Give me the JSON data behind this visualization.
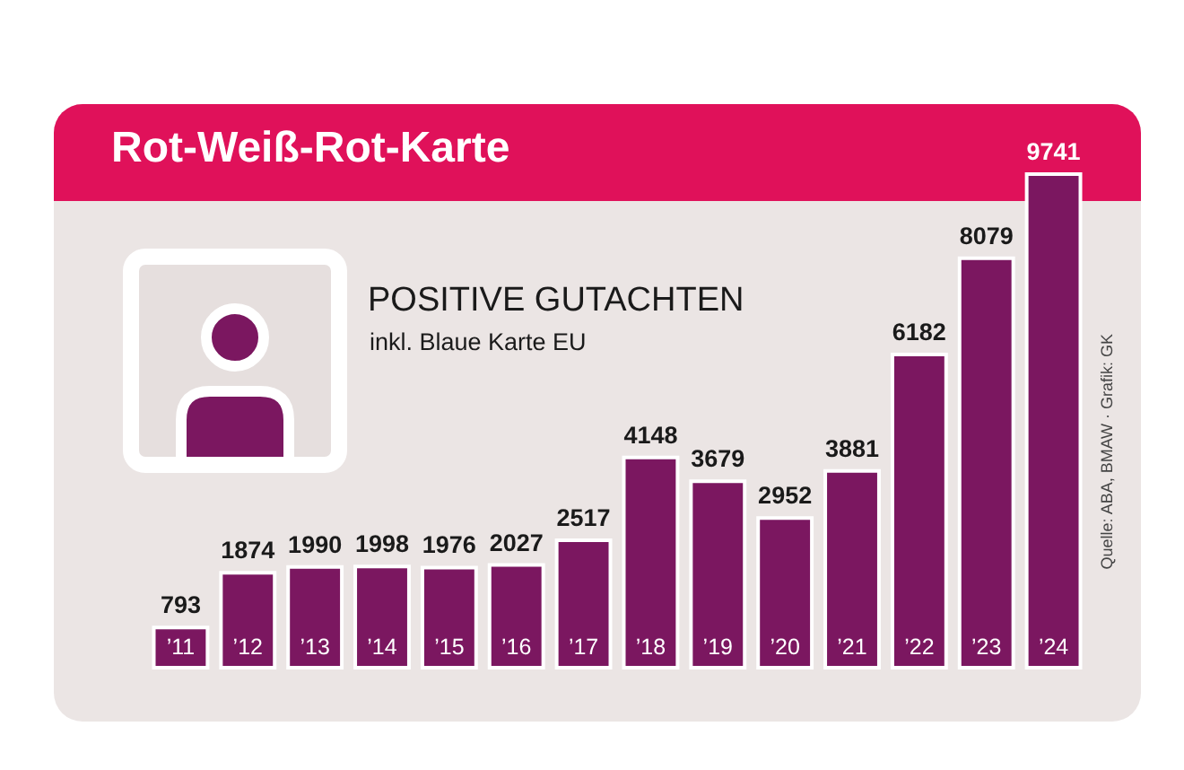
{
  "chart_data": {
    "type": "bar",
    "title": "Rot-Weiß-Rot-Karte",
    "subtitle": "POSITIVE GUTACHTEN",
    "annotations": [
      "inkl. Blaue Karte EU",
      "Quelle: ABA, BMAW · Grafik: GK"
    ],
    "categories": [
      "’11",
      "’12",
      "’13",
      "’14",
      "’15",
      "’16",
      "’17",
      "’18",
      "’19",
      "’20",
      "’21",
      "’22",
      "’23",
      "’24"
    ],
    "values": [
      793,
      1874,
      1990,
      1998,
      1976,
      2027,
      2517,
      4148,
      3679,
      2952,
      3881,
      6182,
      8079,
      9741
    ],
    "color": "#7b1760",
    "data_labels": true
  }
}
